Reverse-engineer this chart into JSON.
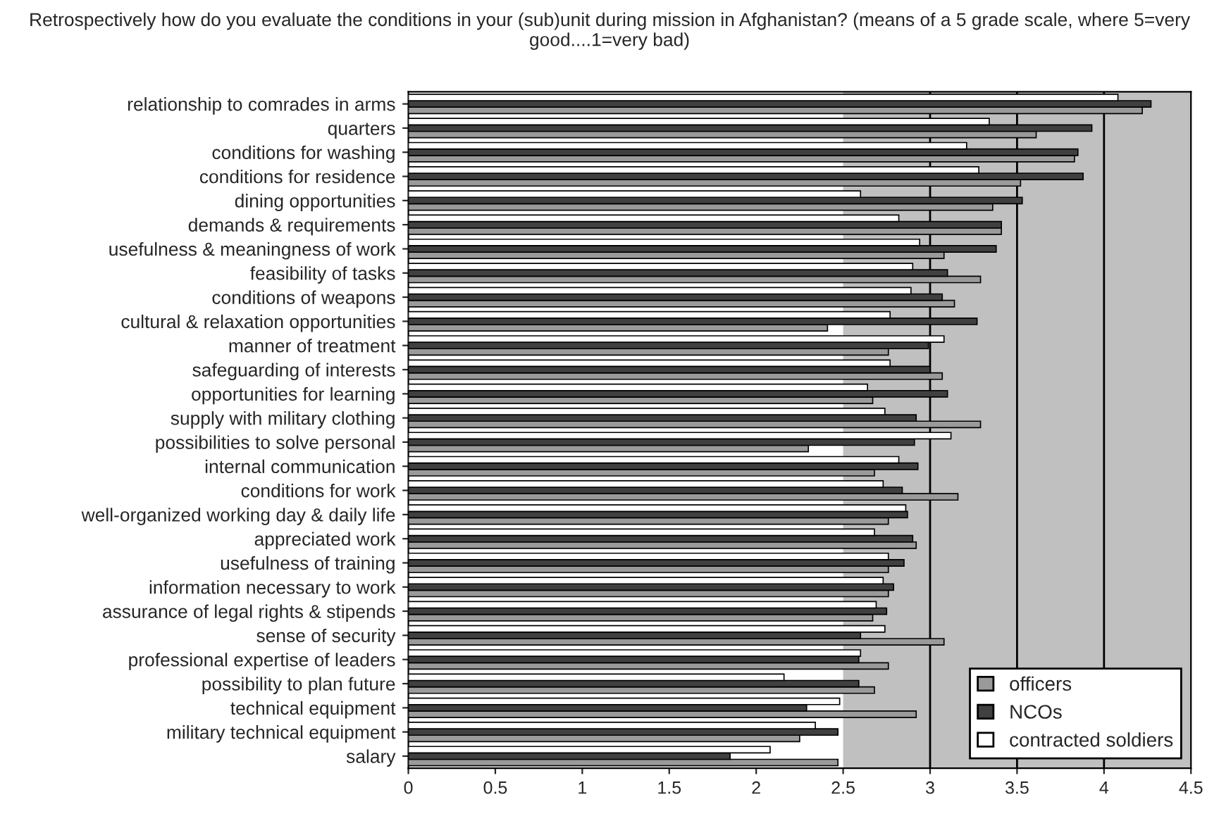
{
  "chart_data": {
    "type": "bar",
    "orientation": "horizontal",
    "title": "Retrospectively how do you evaluate the conditions in your (sub)unit during mission in Afghanistan? (means of a 5 grade scale, where 5=very good....1=very bad)",
    "categories": [
      "relationship to comrades in arms",
      "quarters",
      "conditions for washing",
      "conditions for residence",
      "dining opportunities",
      "demands & requirements",
      "usefulness & meaningness of work",
      "feasibility of tasks",
      "conditions of weapons",
      "cultural & relaxation opportunities",
      "manner of treatment",
      "safeguarding of interests",
      "opportunities for learning",
      "supply with military clothing",
      "possibilities to solve personal",
      "internal communication",
      "conditions for work",
      "well-organized working day & daily life",
      "appreciated work",
      "usefulness of training",
      "information necessary to work",
      "assurance of legal rights & stipends",
      "sense of security",
      "professional expertise of leaders",
      "possibility to plan future",
      "technical equipment",
      "military technical equipment",
      "salary"
    ],
    "series": [
      {
        "name": "officers",
        "color": "#9a9a9a",
        "values": [
          4.22,
          3.61,
          3.83,
          3.52,
          3.36,
          3.41,
          3.08,
          3.29,
          3.14,
          2.41,
          2.76,
          3.07,
          2.67,
          3.29,
          2.3,
          2.68,
          3.16,
          2.76,
          2.92,
          2.76,
          2.76,
          2.67,
          3.08,
          2.76,
          2.68,
          2.92,
          2.25,
          2.47
        ]
      },
      {
        "name": "NCOs",
        "color": "#404040",
        "values": [
          4.27,
          3.93,
          3.85,
          3.88,
          3.53,
          3.41,
          3.38,
          3.1,
          3.07,
          3.27,
          2.99,
          3.0,
          3.1,
          2.92,
          2.91,
          2.93,
          2.84,
          2.87,
          2.9,
          2.85,
          2.79,
          2.75,
          2.6,
          2.59,
          2.59,
          2.29,
          2.47,
          1.85
        ]
      },
      {
        "name": "contracted soldiers",
        "color": "#ffffff",
        "values": [
          4.08,
          3.34,
          3.21,
          3.28,
          2.6,
          2.82,
          2.94,
          2.9,
          2.89,
          2.77,
          3.08,
          2.77,
          2.64,
          2.74,
          3.12,
          2.82,
          2.73,
          2.86,
          2.68,
          2.76,
          2.73,
          2.69,
          2.74,
          2.6,
          2.16,
          2.48,
          2.34,
          2.08
        ]
      }
    ],
    "xlim": [
      0,
      4.5
    ],
    "xticks": [
      0,
      0.5,
      1,
      1.5,
      2,
      2.5,
      3,
      3.5,
      4,
      4.5
    ],
    "bands": [
      {
        "axis": "x",
        "from": 2.5,
        "to": 4.5,
        "color": "#c0c0c0"
      }
    ],
    "ref_lines": [
      {
        "axis": "x",
        "value": 3,
        "color": "#000000"
      },
      {
        "axis": "x",
        "value": 3.5,
        "color": "#000000"
      },
      {
        "axis": "x",
        "value": 4,
        "color": "#000000"
      }
    ],
    "legend": "bottom right",
    "grid": false
  }
}
